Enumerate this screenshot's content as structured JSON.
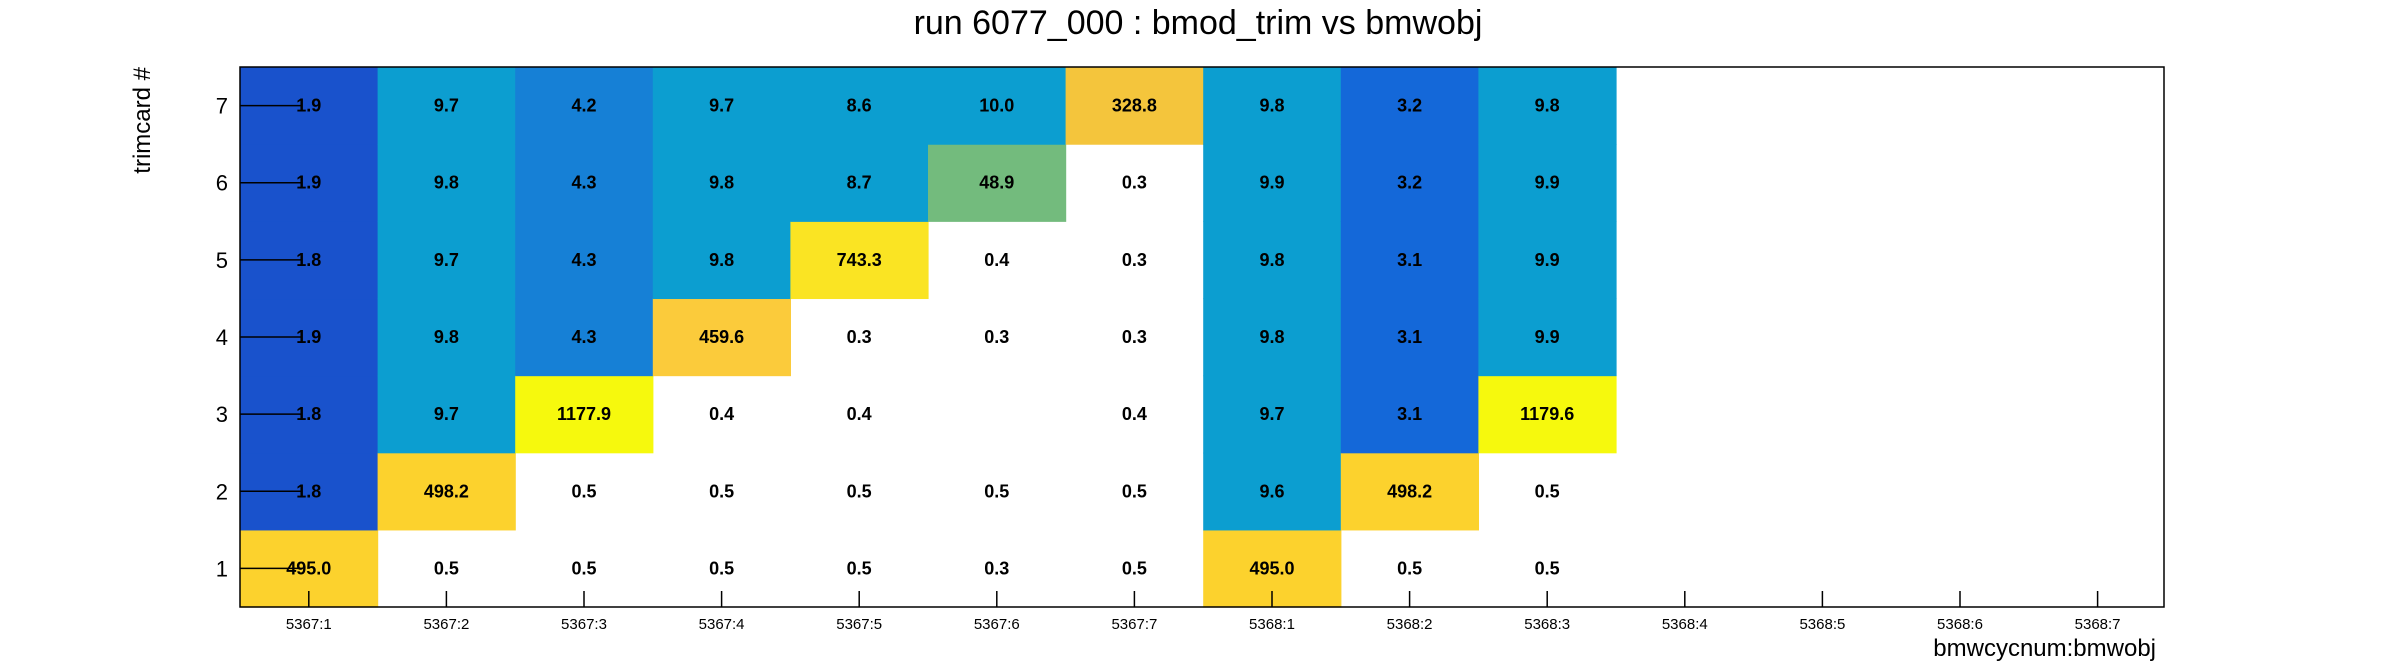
{
  "chart_data": {
    "type": "heatmap",
    "title": "run 6077_000 : bmod_trim vs bmwobj",
    "xlabel": "bmwcycnum:bmwobj",
    "ylabel": "trimcard #",
    "categories": [
      "5367:1",
      "5367:2",
      "5367:3",
      "5367:4",
      "5367:5",
      "5367:6",
      "5367:7",
      "5368:1",
      "5368:2",
      "5368:3",
      "5368:4",
      "5368:5",
      "5368:6",
      "5368:7"
    ],
    "y": [
      1,
      2,
      3,
      4,
      5,
      6,
      7
    ],
    "cells": [
      {
        "x": "5367:1",
        "y": 1,
        "value": 495.0,
        "label": "495.0",
        "color": "#fcd22d"
      },
      {
        "x": "5367:1",
        "y": 2,
        "value": 1.8,
        "label": "1.8",
        "color": "#1952cc"
      },
      {
        "x": "5367:1",
        "y": 3,
        "value": 1.8,
        "label": "1.8",
        "color": "#1952cc"
      },
      {
        "x": "5367:1",
        "y": 4,
        "value": 1.9,
        "label": "1.9",
        "color": "#1952cc"
      },
      {
        "x": "5367:1",
        "y": 5,
        "value": 1.8,
        "label": "1.8",
        "color": "#1952cc"
      },
      {
        "x": "5367:1",
        "y": 6,
        "value": 1.9,
        "label": "1.9",
        "color": "#1952cc"
      },
      {
        "x": "5367:1",
        "y": 7,
        "value": 1.9,
        "label": "1.9",
        "color": "#1952cc"
      },
      {
        "x": "5367:2",
        "y": 1,
        "value": 0.5,
        "label": "0.5",
        "color": ""
      },
      {
        "x": "5367:2",
        "y": 2,
        "value": 498.2,
        "label": "498.2",
        "color": "#fcd22d"
      },
      {
        "x": "5367:2",
        "y": 3,
        "value": 9.7,
        "label": "9.7",
        "color": "#0c9ed0"
      },
      {
        "x": "5367:2",
        "y": 4,
        "value": 9.8,
        "label": "9.8",
        "color": "#0c9ed0"
      },
      {
        "x": "5367:2",
        "y": 5,
        "value": 9.7,
        "label": "9.7",
        "color": "#0c9ed0"
      },
      {
        "x": "5367:2",
        "y": 6,
        "value": 9.8,
        "label": "9.8",
        "color": "#0c9ed0"
      },
      {
        "x": "5367:2",
        "y": 7,
        "value": 9.7,
        "label": "9.7",
        "color": "#0c9ed0"
      },
      {
        "x": "5367:3",
        "y": 1,
        "value": 0.5,
        "label": "0.5",
        "color": ""
      },
      {
        "x": "5367:3",
        "y": 2,
        "value": 0.5,
        "label": "0.5",
        "color": ""
      },
      {
        "x": "5367:3",
        "y": 3,
        "value": 1177.9,
        "label": "1177.9",
        "color": "#f6f90d"
      },
      {
        "x": "5367:3",
        "y": 4,
        "value": 4.3,
        "label": "4.3",
        "color": "#1680d6"
      },
      {
        "x": "5367:3",
        "y": 5,
        "value": 4.3,
        "label": "4.3",
        "color": "#1680d6"
      },
      {
        "x": "5367:3",
        "y": 6,
        "value": 4.3,
        "label": "4.3",
        "color": "#1680d6"
      },
      {
        "x": "5367:3",
        "y": 7,
        "value": 4.2,
        "label": "4.2",
        "color": "#1680d6"
      },
      {
        "x": "5367:4",
        "y": 1,
        "value": 0.5,
        "label": "0.5",
        "color": ""
      },
      {
        "x": "5367:4",
        "y": 2,
        "value": 0.5,
        "label": "0.5",
        "color": ""
      },
      {
        "x": "5367:4",
        "y": 3,
        "value": 0.4,
        "label": "0.4",
        "color": ""
      },
      {
        "x": "5367:4",
        "y": 4,
        "value": 459.6,
        "label": "459.6",
        "color": "#fbcb3b"
      },
      {
        "x": "5367:4",
        "y": 5,
        "value": 9.8,
        "label": "9.8",
        "color": "#0c9ed0"
      },
      {
        "x": "5367:4",
        "y": 6,
        "value": 9.8,
        "label": "9.8",
        "color": "#0c9ed0"
      },
      {
        "x": "5367:4",
        "y": 7,
        "value": 9.7,
        "label": "9.7",
        "color": "#0c9ed0"
      },
      {
        "x": "5367:5",
        "y": 1,
        "value": 0.5,
        "label": "0.5",
        "color": ""
      },
      {
        "x": "5367:5",
        "y": 2,
        "value": 0.5,
        "label": "0.5",
        "color": ""
      },
      {
        "x": "5367:5",
        "y": 3,
        "value": 0.4,
        "label": "0.4",
        "color": ""
      },
      {
        "x": "5367:5",
        "y": 4,
        "value": 0.3,
        "label": "0.3",
        "color": ""
      },
      {
        "x": "5367:5",
        "y": 5,
        "value": 743.3,
        "label": "743.3",
        "color": "#fae423"
      },
      {
        "x": "5367:5",
        "y": 6,
        "value": 8.7,
        "label": "8.7",
        "color": "#0c9ed0"
      },
      {
        "x": "5367:5",
        "y": 7,
        "value": 8.6,
        "label": "8.6",
        "color": "#0c9ed0"
      },
      {
        "x": "5367:6",
        "y": 1,
        "value": 0.3,
        "label": "0.3",
        "color": ""
      },
      {
        "x": "5367:6",
        "y": 2,
        "value": 0.5,
        "label": "0.5",
        "color": ""
      },
      {
        "x": "5367:6",
        "y": 4,
        "value": 0.3,
        "label": "0.3",
        "color": ""
      },
      {
        "x": "5367:6",
        "y": 5,
        "value": 0.4,
        "label": "0.4",
        "color": ""
      },
      {
        "x": "5367:6",
        "y": 6,
        "value": 48.9,
        "label": "48.9",
        "color": "#73bb7d"
      },
      {
        "x": "5367:6",
        "y": 7,
        "value": 10.0,
        "label": "10.0",
        "color": "#0c9ed0"
      },
      {
        "x": "5367:7",
        "y": 1,
        "value": 0.5,
        "label": "0.5",
        "color": ""
      },
      {
        "x": "5367:7",
        "y": 2,
        "value": 0.5,
        "label": "0.5",
        "color": ""
      },
      {
        "x": "5367:7",
        "y": 3,
        "value": 0.4,
        "label": "0.4",
        "color": ""
      },
      {
        "x": "5367:7",
        "y": 4,
        "value": 0.3,
        "label": "0.3",
        "color": ""
      },
      {
        "x": "5367:7",
        "y": 5,
        "value": 0.3,
        "label": "0.3",
        "color": ""
      },
      {
        "x": "5367:7",
        "y": 6,
        "value": 0.3,
        "label": "0.3",
        "color": ""
      },
      {
        "x": "5367:7",
        "y": 7,
        "value": 328.8,
        "label": "328.8",
        "color": "#f4c53c"
      },
      {
        "x": "5368:1",
        "y": 1,
        "value": 495.0,
        "label": "495.0",
        "color": "#fcd22d"
      },
      {
        "x": "5368:1",
        "y": 2,
        "value": 9.6,
        "label": "9.6",
        "color": "#0c9ed0"
      },
      {
        "x": "5368:1",
        "y": 3,
        "value": 9.7,
        "label": "9.7",
        "color": "#0c9ed0"
      },
      {
        "x": "5368:1",
        "y": 4,
        "value": 9.8,
        "label": "9.8",
        "color": "#0c9ed0"
      },
      {
        "x": "5368:1",
        "y": 5,
        "value": 9.8,
        "label": "9.8",
        "color": "#0c9ed0"
      },
      {
        "x": "5368:1",
        "y": 6,
        "value": 9.9,
        "label": "9.9",
        "color": "#0c9ed0"
      },
      {
        "x": "5368:1",
        "y": 7,
        "value": 9.8,
        "label": "9.8",
        "color": "#0c9ed0"
      },
      {
        "x": "5368:2",
        "y": 1,
        "value": 0.5,
        "label": "0.5",
        "color": ""
      },
      {
        "x": "5368:2",
        "y": 2,
        "value": 498.2,
        "label": "498.2",
        "color": "#fcd22d"
      },
      {
        "x": "5368:2",
        "y": 3,
        "value": 3.1,
        "label": "3.1",
        "color": "#1468d9"
      },
      {
        "x": "5368:2",
        "y": 4,
        "value": 3.1,
        "label": "3.1",
        "color": "#1468d9"
      },
      {
        "x": "5368:2",
        "y": 5,
        "value": 3.1,
        "label": "3.1",
        "color": "#1468d9"
      },
      {
        "x": "5368:2",
        "y": 6,
        "value": 3.2,
        "label": "3.2",
        "color": "#1468d9"
      },
      {
        "x": "5368:2",
        "y": 7,
        "value": 3.2,
        "label": "3.2",
        "color": "#1468d9"
      },
      {
        "x": "5368:3",
        "y": 1,
        "value": 0.5,
        "label": "0.5",
        "color": ""
      },
      {
        "x": "5368:3",
        "y": 2,
        "value": 0.5,
        "label": "0.5",
        "color": ""
      },
      {
        "x": "5368:3",
        "y": 3,
        "value": 1179.6,
        "label": "1179.6",
        "color": "#f6f90d"
      },
      {
        "x": "5368:3",
        "y": 4,
        "value": 9.9,
        "label": "9.9",
        "color": "#0c9ed0"
      },
      {
        "x": "5368:3",
        "y": 5,
        "value": 9.9,
        "label": "9.9",
        "color": "#0c9ed0"
      },
      {
        "x": "5368:3",
        "y": 6,
        "value": 9.9,
        "label": "9.9",
        "color": "#0c9ed0"
      },
      {
        "x": "5368:3",
        "y": 7,
        "value": 9.8,
        "label": "9.8",
        "color": "#0c9ed0"
      }
    ],
    "grid": false,
    "legend": "none"
  }
}
